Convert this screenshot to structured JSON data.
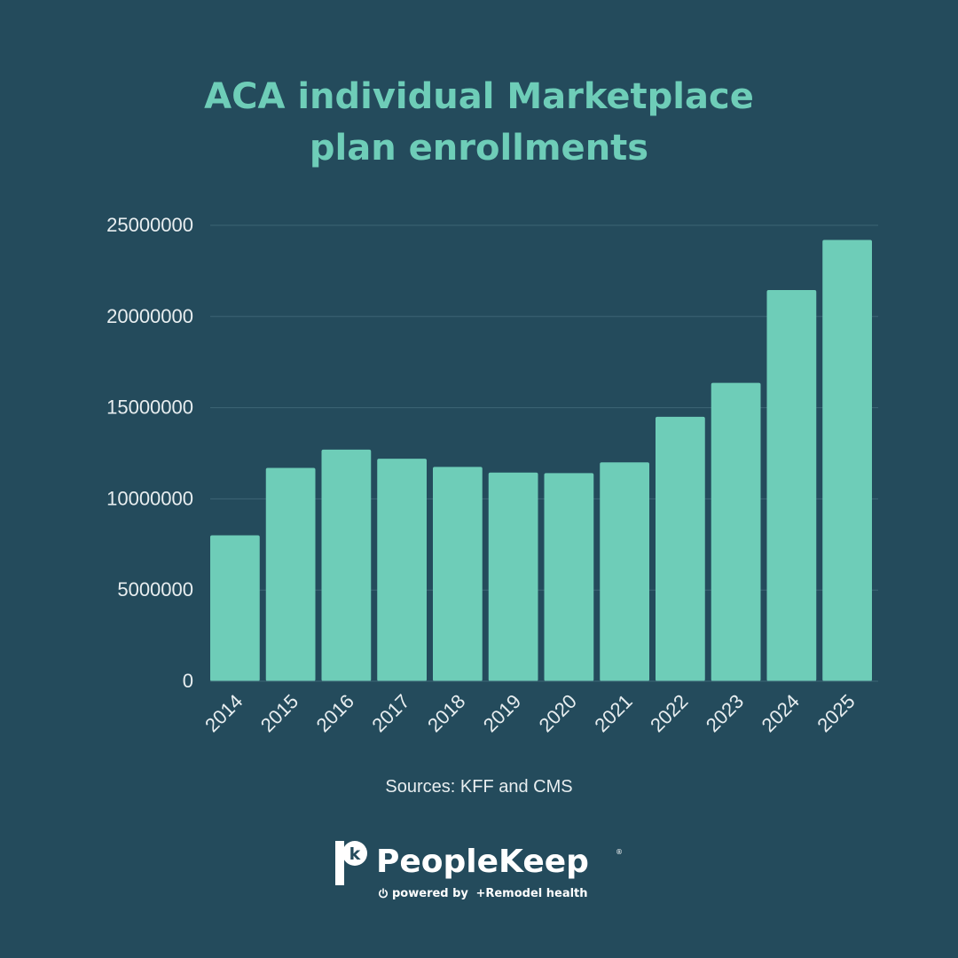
{
  "title": {
    "line1": "ACA individual Marketplace",
    "line2": "plan enrollments"
  },
  "chart_data": {
    "type": "bar",
    "title": "ACA individual Marketplace plan enrollments",
    "categories": [
      "2014",
      "2015",
      "2016",
      "2017",
      "2018",
      "2019",
      "2020",
      "2021",
      "2022",
      "2023",
      "2024",
      "2025"
    ],
    "values": [
      8000000,
      11700000,
      12700000,
      12200000,
      11750000,
      11440000,
      11410000,
      12000000,
      14500000,
      16360000,
      21450000,
      24200000
    ],
    "yticks": [
      "0",
      "5000000",
      "10000000",
      "15000000",
      "20000000",
      "25000000"
    ],
    "ylim": [
      0,
      25000000
    ],
    "xlabel": "",
    "ylabel": "",
    "grid": true,
    "bar_color": "#6ecdb8"
  },
  "source": "Sources: KFF and CMS",
  "brand": {
    "name": "PeopleKeep",
    "mark_letter": "k",
    "registered": "®",
    "powered_by": "powered by",
    "partner": "Remodel health",
    "partner_prefix": "+"
  },
  "colors": {
    "background": "#244b5c",
    "accent": "#6ecdb8",
    "text": "#e8eef0",
    "grid": "#3d6575"
  }
}
